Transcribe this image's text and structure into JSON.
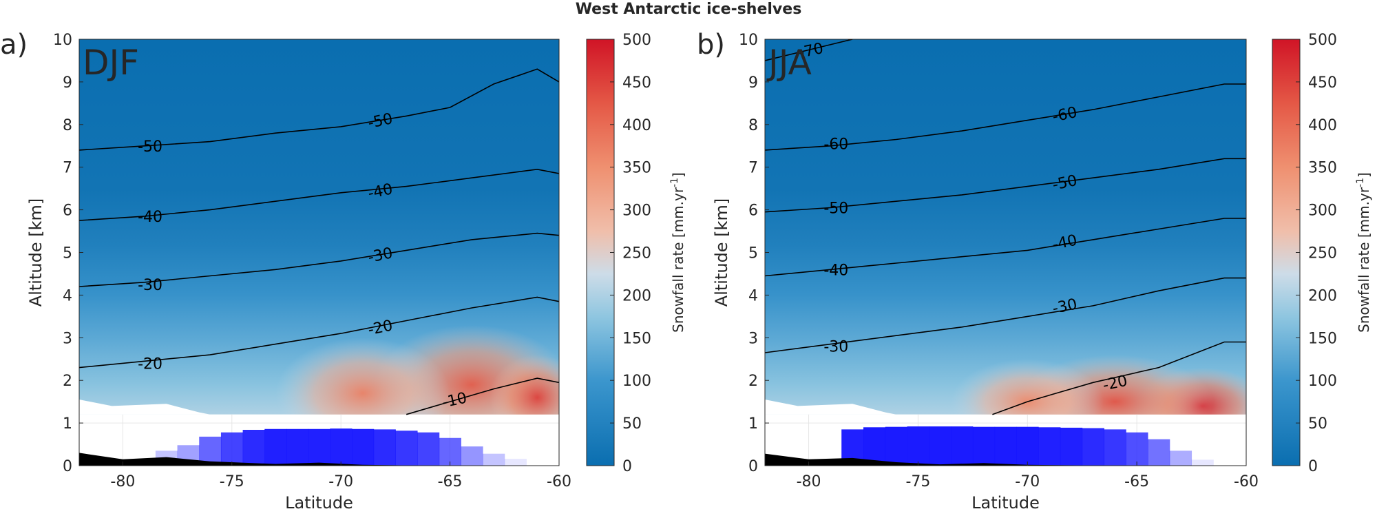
{
  "figure": {
    "title": "West Antarctic ice-shelves"
  },
  "colors": {
    "low": "#0a6eb0",
    "mid": "#8fc6e0",
    "neutral": "#dcdcdc",
    "warm": "#ef9070",
    "high": "#d01426",
    "terrain": "#000000",
    "bar_strong": "#1414ff",
    "contour": "#000000"
  },
  "chart_data": [
    {
      "type": "heatmap",
      "panel_label": "a)",
      "season": "DJF",
      "xlabel": "Latitude",
      "ylabel": "Altitude [km]",
      "xlim": [
        -82,
        -60
      ],
      "ylim": [
        0,
        10
      ],
      "xticks": [
        "-80",
        "-75",
        "-70",
        "-65",
        "-60"
      ],
      "yticks": [
        "0",
        "1",
        "2",
        "3",
        "4",
        "5",
        "6",
        "7",
        "8",
        "9",
        "10"
      ],
      "field_floor_km": 1.2,
      "colorbar": {
        "label": "Snowfall rate [mm.yr",
        "label_sup": "-1",
        "label_end": "]",
        "range": [
          0,
          500
        ],
        "ticks": [
          "0",
          "50",
          "100",
          "150",
          "200",
          "250",
          "300",
          "350",
          "400",
          "450",
          "500"
        ]
      },
      "contours": [
        {
          "level": "-10",
          "points": [
            [
              -67,
              1.2
            ],
            [
              -65,
              1.5
            ],
            [
              -63,
              1.8
            ],
            [
              -61,
              2.05
            ],
            [
              -60,
              1.95
            ]
          ],
          "label_at": [
            -64.8,
            1.55
          ]
        },
        {
          "level": "-20",
          "points": [
            [
              -82,
              2.3
            ],
            [
              -79,
              2.45
            ],
            [
              -76,
              2.6
            ],
            [
              -73,
              2.85
            ],
            [
              -70,
              3.1
            ],
            [
              -67,
              3.4
            ],
            [
              -64,
              3.7
            ],
            [
              -61,
              3.95
            ],
            [
              -60,
              3.85
            ]
          ],
          "label_at": [
            -68.2,
            3.25
          ]
        },
        {
          "level": "-30",
          "points": [
            [
              -82,
              4.2
            ],
            [
              -79,
              4.3
            ],
            [
              -76,
              4.45
            ],
            [
              -73,
              4.6
            ],
            [
              -70,
              4.8
            ],
            [
              -67,
              5.05
            ],
            [
              -64,
              5.3
            ],
            [
              -61,
              5.45
            ],
            [
              -60,
              5.4
            ]
          ],
          "label_at": [
            -68.2,
            4.95
          ]
        },
        {
          "level": "-40",
          "points": [
            [
              -82,
              5.75
            ],
            [
              -79,
              5.85
            ],
            [
              -76,
              6.0
            ],
            [
              -73,
              6.2
            ],
            [
              -70,
              6.4
            ],
            [
              -67,
              6.55
            ],
            [
              -64,
              6.75
            ],
            [
              -61,
              6.95
            ],
            [
              -60,
              6.85
            ]
          ],
          "label_at": [
            -68.2,
            6.45
          ]
        },
        {
          "level": "-50",
          "points": [
            [
              -82,
              7.4
            ],
            [
              -79,
              7.5
            ],
            [
              -76,
              7.6
            ],
            [
              -73,
              7.8
            ],
            [
              -70,
              7.95
            ],
            [
              -67,
              8.2
            ],
            [
              -65,
              8.4
            ],
            [
              -63,
              8.95
            ],
            [
              -61,
              9.3
            ],
            [
              -60,
              9.0
            ]
          ],
          "label_at": [
            -68.2,
            8.1
          ]
        }
      ],
      "contour_labels_left": [
        {
          "level": "-50",
          "at": [
            -79,
            7.5
          ]
        },
        {
          "level": "-40",
          "at": [
            -79,
            5.85
          ]
        },
        {
          "level": "-30",
          "at": [
            -79,
            4.25
          ]
        },
        {
          "level": "-20",
          "at": [
            -79,
            2.4
          ]
        }
      ],
      "terrain": [
        [
          -82,
          0.3
        ],
        [
          -80,
          0.15
        ],
        [
          -78,
          0.2
        ],
        [
          -76,
          0.1
        ],
        [
          -73,
          0.04
        ],
        [
          -71,
          0.07
        ],
        [
          -69,
          0.02
        ],
        [
          -66,
          0.0
        ],
        [
          -60,
          0.0
        ]
      ],
      "bars": [
        {
          "lat": -78,
          "height": 0.35,
          "alpha": 0.25
        },
        {
          "lat": -77,
          "height": 0.48,
          "alpha": 0.4
        },
        {
          "lat": -76,
          "height": 0.68,
          "alpha": 0.65
        },
        {
          "lat": -75,
          "height": 0.78,
          "alpha": 0.8
        },
        {
          "lat": -74,
          "height": 0.84,
          "alpha": 0.9
        },
        {
          "lat": -73,
          "height": 0.86,
          "alpha": 0.95
        },
        {
          "lat": -72,
          "height": 0.86,
          "alpha": 0.95
        },
        {
          "lat": -71,
          "height": 0.86,
          "alpha": 0.95
        },
        {
          "lat": -70,
          "height": 0.87,
          "alpha": 0.95
        },
        {
          "lat": -69,
          "height": 0.86,
          "alpha": 0.95
        },
        {
          "lat": -68,
          "height": 0.85,
          "alpha": 0.9
        },
        {
          "lat": -67,
          "height": 0.82,
          "alpha": 0.85
        },
        {
          "lat": -66,
          "height": 0.78,
          "alpha": 0.8
        },
        {
          "lat": -65,
          "height": 0.65,
          "alpha": 0.65
        },
        {
          "lat": -64,
          "height": 0.45,
          "alpha": 0.45
        },
        {
          "lat": -63,
          "height": 0.28,
          "alpha": 0.25
        },
        {
          "lat": -62,
          "height": 0.16,
          "alpha": 0.1
        }
      ],
      "hotspots": [
        {
          "lat": -64,
          "alt": 1.9,
          "value": 420,
          "rx": 4.5,
          "ry": 1.4
        },
        {
          "lat": -69,
          "alt": 1.7,
          "value": 370,
          "rx": 4.0,
          "ry": 1.3
        },
        {
          "lat": -61,
          "alt": 1.6,
          "value": 450,
          "rx": 2.2,
          "ry": 1.0
        }
      ]
    },
    {
      "type": "heatmap",
      "panel_label": "b)",
      "season": "JJA",
      "xlabel": "Latitude",
      "ylabel": "Altitude [km]",
      "xlim": [
        -82,
        -60
      ],
      "ylim": [
        0,
        10
      ],
      "xticks": [
        "-80",
        "-75",
        "-70",
        "-65",
        "-60"
      ],
      "yticks": [
        "0",
        "1",
        "2",
        "3",
        "4",
        "5",
        "6",
        "7",
        "8",
        "9",
        "10"
      ],
      "field_floor_km": 1.2,
      "colorbar": {
        "label": "Snowfall rate [mm.yr",
        "label_sup": "-1",
        "label_end": "]",
        "range": [
          0,
          500
        ],
        "ticks": [
          "0",
          "50",
          "100",
          "150",
          "200",
          "250",
          "300",
          "350",
          "400",
          "450",
          "500"
        ]
      },
      "contours": [
        {
          "level": "-20",
          "points": [
            [
              -71.6,
              1.2
            ],
            [
              -70,
              1.5
            ],
            [
              -67,
              1.95
            ],
            [
              -64,
              2.3
            ],
            [
              -61,
              2.9
            ],
            [
              -60,
              2.9
            ]
          ],
          "label_at": [
            -66.0,
            1.95
          ]
        },
        {
          "level": "-30",
          "points": [
            [
              -82,
              2.65
            ],
            [
              -79,
              2.85
            ],
            [
              -76,
              3.05
            ],
            [
              -73,
              3.25
            ],
            [
              -70,
              3.5
            ],
            [
              -67,
              3.75
            ],
            [
              -64,
              4.1
            ],
            [
              -61,
              4.4
            ],
            [
              -60,
              4.4
            ]
          ],
          "label_at": [
            -68.3,
            3.75
          ]
        },
        {
          "level": "-40",
          "points": [
            [
              -82,
              4.45
            ],
            [
              -79,
              4.6
            ],
            [
              -76,
              4.75
            ],
            [
              -73,
              4.9
            ],
            [
              -70,
              5.05
            ],
            [
              -67,
              5.3
            ],
            [
              -64,
              5.55
            ],
            [
              -61,
              5.8
            ],
            [
              -60,
              5.8
            ]
          ],
          "label_at": [
            -68.3,
            5.25
          ]
        },
        {
          "level": "-50",
          "points": [
            [
              -82,
              5.95
            ],
            [
              -79,
              6.05
            ],
            [
              -76,
              6.2
            ],
            [
              -73,
              6.35
            ],
            [
              -70,
              6.55
            ],
            [
              -67,
              6.75
            ],
            [
              -64,
              6.95
            ],
            [
              -61,
              7.2
            ],
            [
              -60,
              7.2
            ]
          ],
          "label_at": [
            -68.3,
            6.65
          ]
        },
        {
          "level": "-60",
          "points": [
            [
              -82,
              7.4
            ],
            [
              -79,
              7.5
            ],
            [
              -76,
              7.65
            ],
            [
              -73,
              7.85
            ],
            [
              -70,
              8.1
            ],
            [
              -67,
              8.35
            ],
            [
              -64,
              8.65
            ],
            [
              -61,
              8.95
            ],
            [
              -60,
              8.95
            ]
          ],
          "label_at": [
            -68.3,
            8.25
          ]
        },
        {
          "level": "-70",
          "points": [
            [
              -82,
              9.5
            ],
            [
              -80,
              9.75
            ],
            [
              -78,
              10.0
            ]
          ],
          "label_at": [
            -79.9,
            9.75
          ]
        }
      ],
      "contour_labels_left": [
        {
          "level": "-60",
          "at": [
            -79,
            7.55
          ]
        },
        {
          "level": "-50",
          "at": [
            -79,
            6.05
          ]
        },
        {
          "level": "-40",
          "at": [
            -79,
            4.6
          ]
        },
        {
          "level": "-30",
          "at": [
            -79,
            2.8
          ]
        }
      ],
      "terrain": [
        [
          -82,
          0.28
        ],
        [
          -80,
          0.15
        ],
        [
          -78,
          0.18
        ],
        [
          -76,
          0.08
        ],
        [
          -74,
          0.03
        ],
        [
          -72,
          0.06
        ],
        [
          -70,
          0.02
        ],
        [
          -66,
          0.0
        ],
        [
          -60,
          0.0
        ]
      ],
      "bars": [
        {
          "lat": -78,
          "height": 0.85,
          "alpha": 0.95
        },
        {
          "lat": -77,
          "height": 0.9,
          "alpha": 0.97
        },
        {
          "lat": -76,
          "height": 0.91,
          "alpha": 0.97
        },
        {
          "lat": -75,
          "height": 0.92,
          "alpha": 0.97
        },
        {
          "lat": -74,
          "height": 0.92,
          "alpha": 0.97
        },
        {
          "lat": -73,
          "height": 0.92,
          "alpha": 0.97
        },
        {
          "lat": -72,
          "height": 0.91,
          "alpha": 0.97
        },
        {
          "lat": -71,
          "height": 0.91,
          "alpha": 0.97
        },
        {
          "lat": -70,
          "height": 0.91,
          "alpha": 0.97
        },
        {
          "lat": -69,
          "height": 0.9,
          "alpha": 0.95
        },
        {
          "lat": -68,
          "height": 0.89,
          "alpha": 0.95
        },
        {
          "lat": -67,
          "height": 0.88,
          "alpha": 0.9
        },
        {
          "lat": -66,
          "height": 0.85,
          "alpha": 0.85
        },
        {
          "lat": -65,
          "height": 0.78,
          "alpha": 0.75
        },
        {
          "lat": -64,
          "height": 0.62,
          "alpha": 0.6
        },
        {
          "lat": -63,
          "height": 0.35,
          "alpha": 0.35
        },
        {
          "lat": -62,
          "height": 0.14,
          "alpha": 0.1
        }
      ],
      "hotspots": [
        {
          "lat": -62,
          "alt": 1.4,
          "value": 480,
          "rx": 3.0,
          "ry": 0.9
        },
        {
          "lat": -66,
          "alt": 1.5,
          "value": 430,
          "rx": 4.5,
          "ry": 1.1
        },
        {
          "lat": -70,
          "alt": 1.5,
          "value": 360,
          "rx": 3.5,
          "ry": 1.0
        }
      ]
    }
  ]
}
